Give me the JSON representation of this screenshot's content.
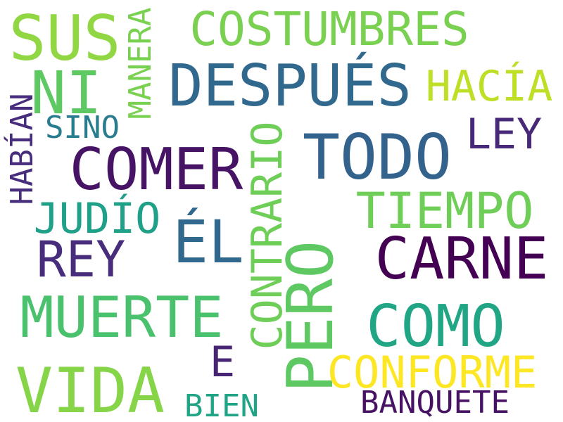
{
  "words": [
    {
      "text": "SUS",
      "color": "#90d743"
    },
    {
      "text": "COSTUMBRES",
      "color": "#7ad151"
    },
    {
      "text": "MANERA",
      "color": "#7ad151"
    },
    {
      "text": "NI",
      "color": "#5ec962"
    },
    {
      "text": "DESPUÉS",
      "color": "#31688e"
    },
    {
      "text": "HACÍA",
      "color": "#bddf26"
    },
    {
      "text": "LEY",
      "color": "#482878"
    },
    {
      "text": "SINO",
      "color": "#287c8e"
    },
    {
      "text": "HABÍAN",
      "color": "#472d7b"
    },
    {
      "text": "COMER",
      "color": "#471365"
    },
    {
      "text": "TODO",
      "color": "#33638d"
    },
    {
      "text": "CONTRARIO",
      "color": "#6ece58"
    },
    {
      "text": "TIEMPO",
      "color": "#6ece58"
    },
    {
      "text": "JUDÍO",
      "color": "#1fa088"
    },
    {
      "text": "ÉL",
      "color": "#31688e"
    },
    {
      "text": "REY",
      "color": "#472d7b"
    },
    {
      "text": "CARNE",
      "color": "#440154"
    },
    {
      "text": "PERO",
      "color": "#5ec962"
    },
    {
      "text": "MUERTE",
      "color": "#4ac16d"
    },
    {
      "text": "COMO",
      "color": "#21a685"
    },
    {
      "text": "E",
      "color": "#482475"
    },
    {
      "text": "CONFORME",
      "color": "#fde725"
    },
    {
      "text": "VIDA",
      "color": "#86d549"
    },
    {
      "text": "BIEN",
      "color": "#20a486"
    },
    {
      "text": "BANQUETE",
      "color": "#471164"
    }
  ]
}
